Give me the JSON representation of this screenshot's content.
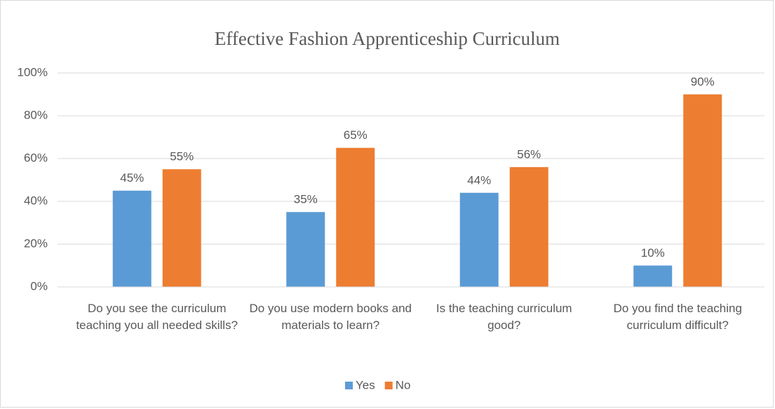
{
  "chart_data": {
    "type": "bar",
    "title": "Effective Fashion Apprenticeship Curriculum",
    "categories": [
      "Do you see the curriculum teaching you all needed skills?",
      "Do you use modern books and materials to learn?",
      "Is the teaching curriculum good?",
      "Do you find the teaching curriculum difficult?"
    ],
    "series": [
      {
        "name": "Yes",
        "color": "#5b9bd5",
        "values": [
          45,
          35,
          44,
          10
        ],
        "value_labels": [
          "45%",
          "35%",
          "44%",
          "10%"
        ]
      },
      {
        "name": "No",
        "color": "#ed7d31",
        "values": [
          55,
          65,
          56,
          90
        ],
        "value_labels": [
          "55%",
          "65%",
          "56%",
          "90%"
        ]
      }
    ],
    "ylim": [
      0,
      100
    ],
    "yticks": [
      {
        "value": 0,
        "label": "0%"
      },
      {
        "value": 20,
        "label": "20%"
      },
      {
        "value": 40,
        "label": "40%"
      },
      {
        "value": 60,
        "label": "60%"
      },
      {
        "value": 80,
        "label": "80%"
      },
      {
        "value": 100,
        "label": "100%"
      }
    ],
    "grid": true,
    "legend": "bottom"
  }
}
